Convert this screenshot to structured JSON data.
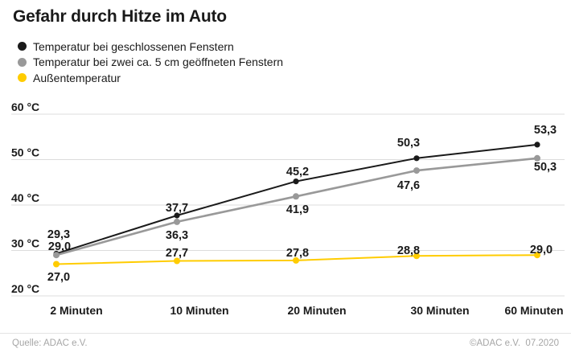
{
  "title": "Gefahr durch Hitze im Auto",
  "legend": [
    {
      "label": "Temperatur bei geschlossenen Fenstern",
      "color": "#1a1a1a"
    },
    {
      "label": "Temperatur bei zwei ca. 5 cm geöffneten Fenstern",
      "color": "#999999"
    },
    {
      "label": "Außentemperatur",
      "color": "#ffcc00"
    }
  ],
  "colors": {
    "closed_windows": "#1a1a1a",
    "open_windows": "#999999",
    "outside": "#ffcc00",
    "grid": "#dcdcdc",
    "text": "#1a1a1a",
    "muted_text": "#a6a6a6"
  },
  "chart_data": {
    "type": "line",
    "title": "Gefahr durch Hitze im Auto",
    "categories": [
      "2 Minuten",
      "10 Minuten",
      "20 Minuten",
      "30 Minuten",
      "60 Minuten"
    ],
    "series": [
      {
        "name": "Temperatur bei geschlossenen Fenstern",
        "color": "#1a1a1a",
        "values": [
          29.3,
          37.7,
          45.2,
          50.3,
          53.3
        ]
      },
      {
        "name": "Temperatur bei zwei ca. 5 cm geöffneten Fenstern",
        "color": "#999999",
        "values": [
          29.0,
          36.3,
          41.9,
          47.6,
          50.3
        ]
      },
      {
        "name": "Außentemperatur",
        "color": "#ffcc00",
        "values": [
          27.0,
          27.7,
          27.8,
          28.8,
          29.0
        ]
      }
    ],
    "value_label_format": "decimal-comma-one-digit",
    "y_ticks": [
      "60 °C",
      "50 °C",
      "40 °C",
      "30 °C",
      "20 °C"
    ],
    "y_tick_values": [
      60,
      50,
      40,
      30,
      20
    ],
    "ylim": [
      20,
      60
    ],
    "xlabel": "",
    "ylabel": "°C",
    "grid": true,
    "legend_position": "top-left"
  },
  "footer": {
    "source": "Quelle: ADAC e.V.",
    "copyright": "©ADAC e.V.  07.2020"
  }
}
